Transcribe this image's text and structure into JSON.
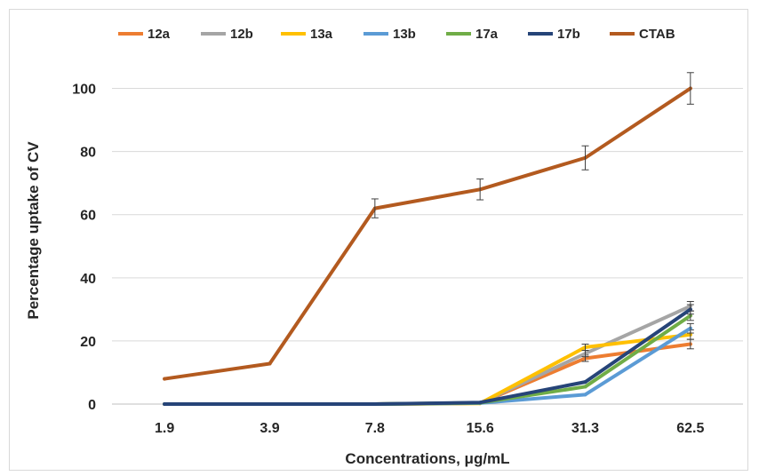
{
  "chart_data": {
    "type": "line",
    "title": "",
    "xlabel": "Concentrations, μg/mL",
    "ylabel": "Percentage uptake of CV",
    "categories": [
      "1.9",
      "3.9",
      "7.8",
      "15.6",
      "31.3",
      "62.5"
    ],
    "ylim": [
      0,
      110
    ],
    "yticks": [
      0,
      20,
      40,
      60,
      80,
      100
    ],
    "grid": true,
    "legend_position": "top",
    "series": [
      {
        "name": "12a",
        "color": "#ED7D31",
        "values": [
          0,
          0,
          0,
          0.3,
          14.5,
          19
        ],
        "errors": [
          0,
          0,
          0,
          0,
          1,
          1.5
        ]
      },
      {
        "name": "12b",
        "color": "#A5A5A5",
        "values": [
          0,
          0,
          0,
          0.3,
          16,
          31
        ],
        "errors": [
          0,
          0,
          0,
          0,
          1,
          1.5
        ]
      },
      {
        "name": "13a",
        "color": "#FFC000",
        "values": [
          0,
          0,
          0,
          0.2,
          18,
          22
        ],
        "errors": [
          0,
          0,
          0,
          0,
          1,
          1.5
        ]
      },
      {
        "name": "13b",
        "color": "#5B9BD5",
        "values": [
          0,
          0,
          0,
          0.3,
          3,
          24
        ],
        "errors": [
          0,
          0,
          0,
          0,
          0,
          1.5
        ]
      },
      {
        "name": "17a",
        "color": "#70AD47",
        "values": [
          0,
          0,
          0,
          0.4,
          5.5,
          28
        ],
        "errors": [
          0,
          0,
          0,
          0,
          0,
          1.5
        ]
      },
      {
        "name": "17b",
        "color": "#264478",
        "values": [
          0,
          0,
          0,
          0.5,
          7,
          30
        ],
        "errors": [
          0,
          0,
          0,
          0,
          0,
          1.5
        ]
      },
      {
        "name": "CTAB",
        "color": "#B35A1F",
        "values": [
          8,
          12.8,
          62,
          68,
          78,
          100
        ],
        "errors": [
          0,
          0,
          3,
          3.3,
          3.8,
          5
        ]
      }
    ]
  }
}
